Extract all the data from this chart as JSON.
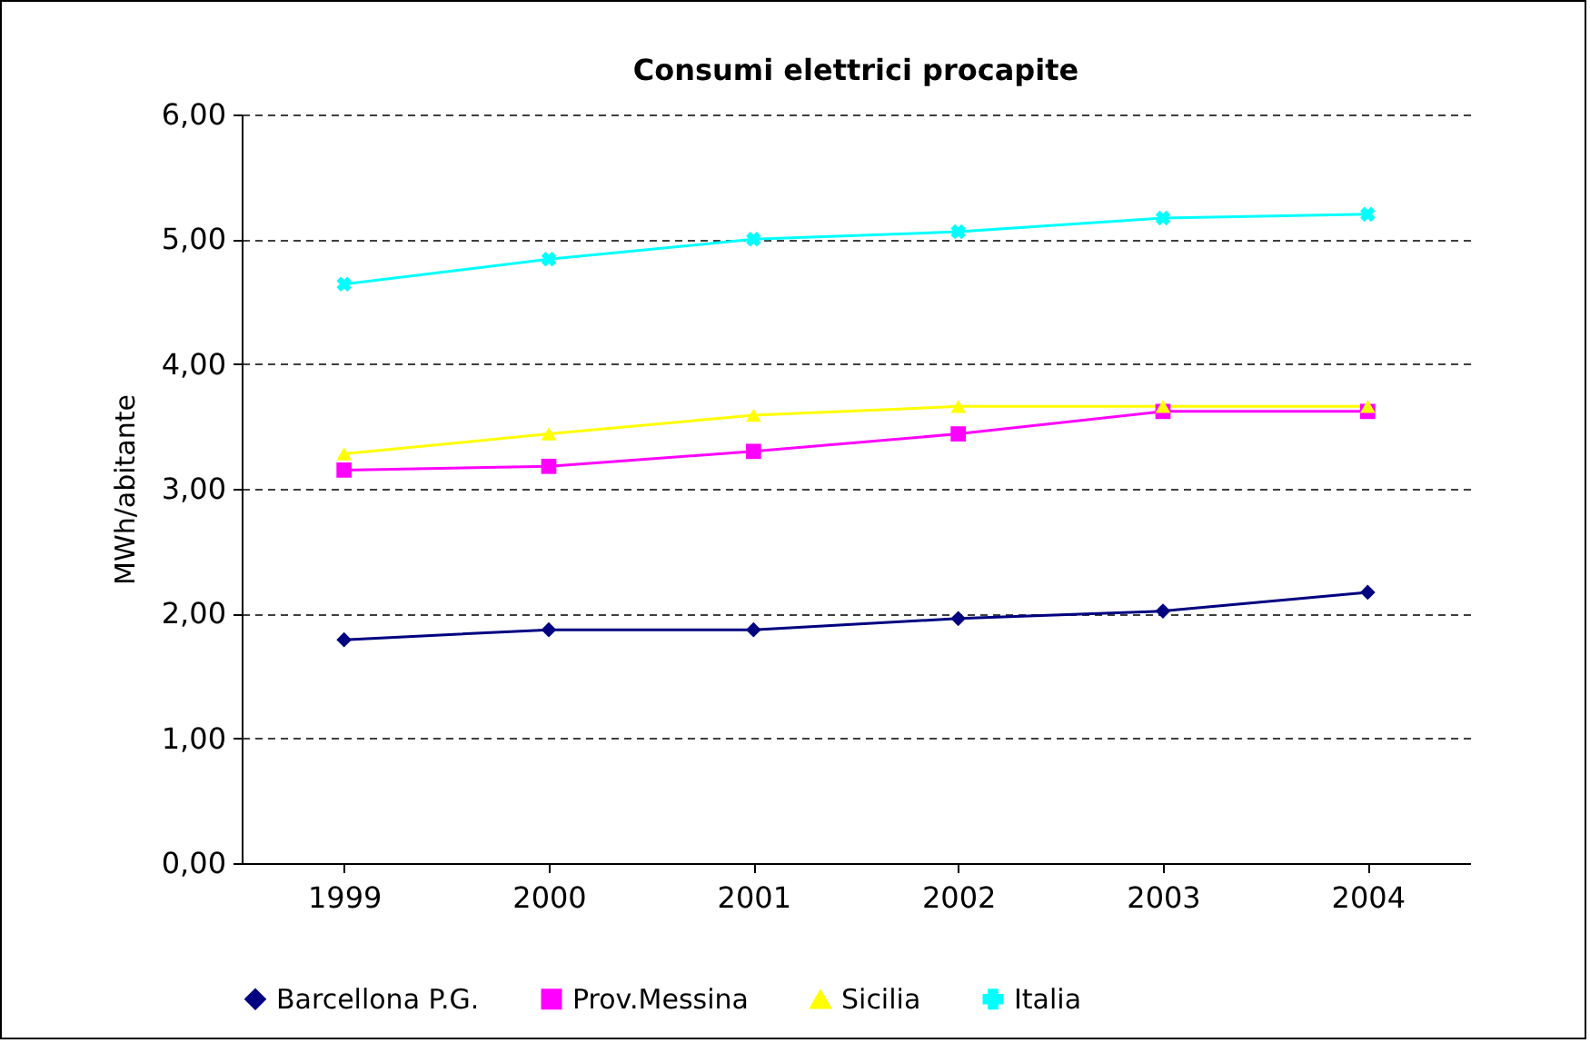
{
  "chart_data": {
    "type": "line",
    "title": "Consumi elettrici procapite",
    "ylabel": "MWh/abitante",
    "categories": [
      "1999",
      "2000",
      "2001",
      "2002",
      "2003",
      "2004"
    ],
    "series": [
      {
        "name": "Barcellona P.G.",
        "color": "#000080",
        "marker": "diamond",
        "values": [
          1.79,
          1.87,
          1.87,
          1.96,
          2.02,
          2.17
        ]
      },
      {
        "name": "Prov.Messina",
        "color": "#ff00ff",
        "marker": "square",
        "values": [
          3.15,
          3.18,
          3.3,
          3.44,
          3.62,
          3.62
        ]
      },
      {
        "name": "Sicilia",
        "color": "#ffff00",
        "marker": "triangle",
        "values": [
          3.28,
          3.44,
          3.59,
          3.66,
          3.66,
          3.66
        ]
      },
      {
        "name": "Italia",
        "color": "#00ffff",
        "marker": "cross",
        "values": [
          4.64,
          4.84,
          5.0,
          5.06,
          5.17,
          5.2
        ]
      }
    ],
    "ylim": [
      0,
      6
    ],
    "yticks": [
      {
        "value": 0,
        "label": "0,00"
      },
      {
        "value": 1,
        "label": "1,00"
      },
      {
        "value": 2,
        "label": "2,00"
      },
      {
        "value": 3,
        "label": "3,00"
      },
      {
        "value": 4,
        "label": "4,00"
      },
      {
        "value": 5,
        "label": "5,00"
      },
      {
        "value": 6,
        "label": "6,00"
      }
    ],
    "grid": "y",
    "legend": "bottom",
    "line_style": "solid"
  }
}
